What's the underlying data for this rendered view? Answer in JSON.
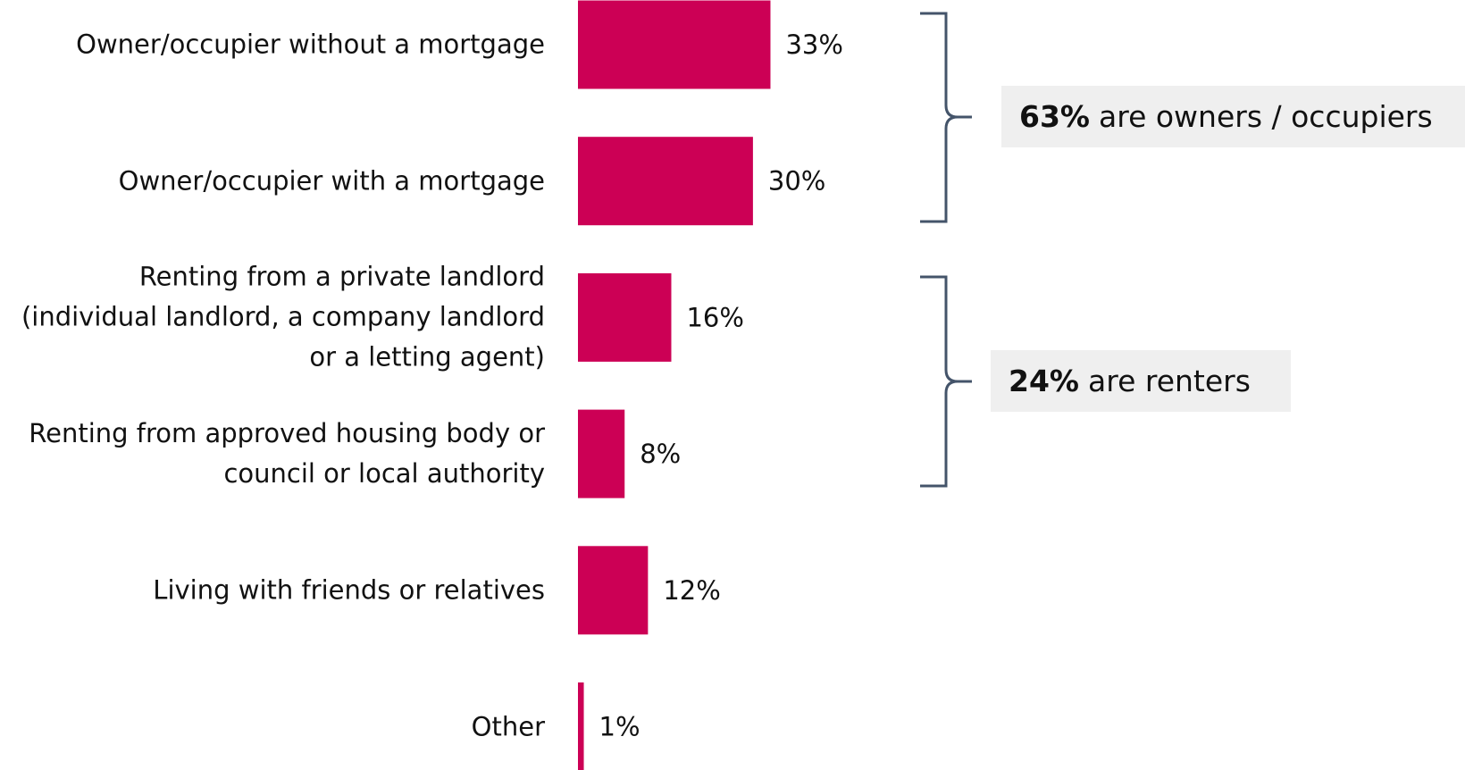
{
  "chart_data": {
    "type": "bar",
    "orientation": "horizontal",
    "categories": [
      "Owner/occupier without a mortgage",
      "Owner/occupier with a mortgage",
      "Renting from a private landlord\n(individual landlord, a company landlord\nor a letting agent)",
      "Renting from approved housing body or\ncouncil or local authority",
      "Living with friends or relatives",
      "Other"
    ],
    "values": [
      33,
      30,
      16,
      8,
      12,
      1
    ],
    "value_labels": [
      "33%",
      "30%",
      "16%",
      "8%",
      "12%",
      "1%"
    ],
    "color": "#cc0055",
    "xlim": [
      0,
      100
    ],
    "annotations": [
      {
        "bold": "63%",
        "text": "are owners / occupiers"
      },
      {
        "bold": "24%",
        "text": "are renters"
      }
    ]
  }
}
